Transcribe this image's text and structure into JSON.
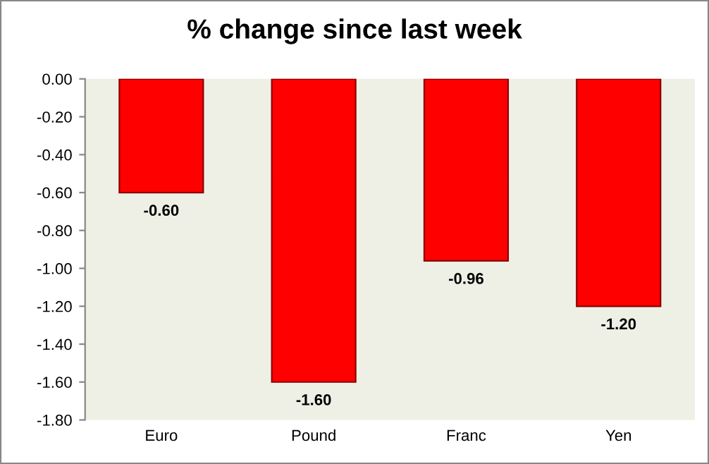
{
  "chart_data": {
    "type": "bar",
    "title": "% change since last week",
    "categories": [
      "Euro",
      "Pound",
      "Franc",
      "Yen"
    ],
    "values": [
      -0.6,
      -1.6,
      -0.96,
      -1.2
    ],
    "value_labels": [
      "-0.60",
      "-1.60",
      "-0.96",
      "-1.20"
    ],
    "color": "#ff0000",
    "ylim": [
      -1.8,
      0
    ],
    "yticks": [
      {
        "value": 0,
        "label": "0.00"
      },
      {
        "value": -0.2,
        "label": "-0.20"
      },
      {
        "value": -0.4,
        "label": "-0.40"
      },
      {
        "value": -0.6,
        "label": "-0.60"
      },
      {
        "value": -0.8,
        "label": "-0.80"
      },
      {
        "value": -1.0,
        "label": "-1.00"
      },
      {
        "value": -1.2,
        "label": "-1.20"
      },
      {
        "value": -1.4,
        "label": "-1.40"
      },
      {
        "value": -1.6,
        "label": "-1.60"
      },
      {
        "value": -1.8,
        "label": "-1.80"
      }
    ],
    "grid": false,
    "legend": false
  }
}
